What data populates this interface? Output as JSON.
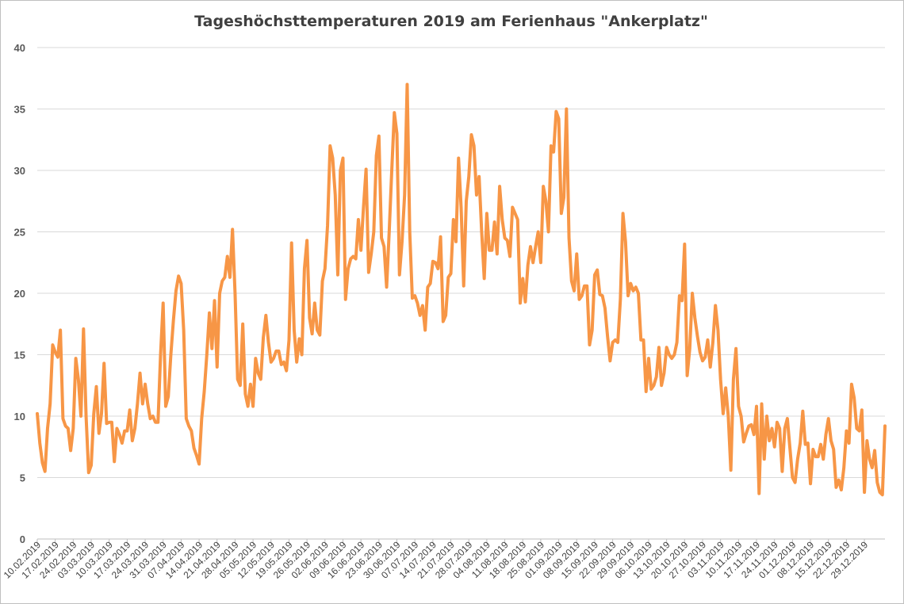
{
  "chart_data": {
    "type": "line",
    "title": "Tageshöchsttemperaturen 2019 am Ferienhaus \"Ankerplatz\"",
    "xlabel": "",
    "ylabel": "",
    "ylim": [
      0,
      40
    ],
    "y_ticks": [
      "0",
      "5",
      "10",
      "15",
      "20",
      "25",
      "30",
      "35",
      "40"
    ],
    "x_tick_labels": [
      "10.02.2019",
      "17.02.2019",
      "24.02.2019",
      "03.03.2019",
      "10.03.2019",
      "17.03.2019",
      "24.03.2019",
      "31.03.2019",
      "07.04.2019",
      "14.04.2019",
      "21.04.2019",
      "28.04.2019",
      "05.05.2019",
      "12.05.2019",
      "19.05.2019",
      "26.05.2019",
      "02.06.2019",
      "09.06.2019",
      "16.06.2019",
      "23.06.2019",
      "30.06.2019",
      "07.07.2019",
      "14.07.2019",
      "21.07.2019",
      "28.07.2019",
      "04.08.2019",
      "11.08.2019",
      "18.08.2019",
      "25.08.2019",
      "01.09.2019",
      "08.09.2019",
      "15.09.2019",
      "22.09.2019",
      "29.09.2019",
      "06.10.2019",
      "13.10.2019",
      "20.10.2019",
      "27.10.2019",
      "03.11.2019",
      "10.11.2019",
      "17.11.2019",
      "24.11.2019",
      "01.12.2019",
      "08.12.2019",
      "15.12.2019",
      "22.12.2019",
      "29.12.2019"
    ],
    "grid": true,
    "legend": "none",
    "line_color": "#f79646",
    "series": [
      {
        "start_date": "10.02.2019",
        "values": [
          10.2,
          7.8,
          6.2,
          5.5,
          9,
          11,
          15.8,
          15.2,
          14.8,
          17,
          9.8,
          9.2,
          9,
          7.2,
          9,
          14.7,
          13,
          10,
          17.1,
          10,
          5.4,
          6,
          10.2,
          12.4,
          8.6,
          10.2,
          14.3,
          9.4,
          9.5,
          9.5,
          6.3,
          9,
          8.5,
          7.8,
          8.8,
          8.8,
          10.5,
          8,
          9,
          11,
          13.5,
          11,
          12.6,
          11,
          9.8,
          10,
          9.5,
          9.5,
          15,
          19.2,
          10.8,
          11.6,
          15,
          17.8,
          20.2,
          21.4,
          20.8,
          17,
          9.8,
          9.2,
          8.8,
          7.4,
          6.8,
          6.1,
          9.8,
          12,
          15,
          18.4,
          15.5,
          19.4,
          14,
          20,
          21,
          21.3,
          23,
          21.3,
          25.2,
          20,
          13,
          12.5,
          17.5,
          11.8,
          10.8,
          12.6,
          10.8,
          14.7,
          13.5,
          13,
          16.4,
          18.2,
          16,
          14.4,
          14.7,
          15.3,
          15.3,
          14.2,
          14.4,
          13.7,
          16.2,
          24.1,
          17,
          14.4,
          16.3,
          15,
          22,
          24.3,
          18,
          16.7,
          19.2,
          17,
          16.6,
          21,
          22,
          25.5,
          32,
          31,
          28,
          21.5,
          30,
          31,
          19.5,
          22,
          22.8,
          23,
          22.8,
          26,
          23.5,
          27,
          30.1,
          21.7,
          23.2,
          25,
          31.2,
          32.8,
          24.5,
          23.8,
          20.5,
          25,
          30,
          34.7,
          33,
          21.5,
          24.2,
          28,
          37,
          25,
          19.6,
          19.8,
          19.2,
          18.2,
          19,
          17,
          20.5,
          20.8,
          22.6,
          22.5,
          22,
          24.6,
          17.7,
          18.2,
          21.3,
          21.6,
          26,
          24.2,
          31,
          27,
          20.6,
          27.5,
          29.5,
          32.9,
          32,
          28,
          29.5,
          25,
          21.2,
          26.5,
          23.5,
          23.5,
          25.8,
          23.2,
          28.7,
          26,
          24.5,
          24.3,
          23,
          27,
          26.5,
          26,
          19.2,
          21.2,
          19.3,
          22.3,
          23.8,
          22.5,
          23.8,
          25,
          22.5,
          28.7,
          27.5,
          25,
          32,
          31.5,
          34.8,
          34.2,
          26.5,
          27.8,
          35,
          24.5,
          21,
          20.2,
          23.2,
          19.5,
          19.8,
          20.6,
          20.6,
          15.8,
          17,
          21.5,
          21.9,
          19.9,
          19.8,
          18.8,
          16.5,
          14.5,
          16,
          16.2,
          16,
          19.5,
          26.5,
          24.2,
          19.8,
          20.8,
          20.2,
          20.5,
          20,
          16.2,
          16.2,
          12,
          14.7,
          12.2,
          12.5,
          13.2,
          15.6,
          12.5,
          13.5,
          15.6,
          15,
          14.7,
          15,
          16,
          19.8,
          19.4,
          24,
          13.3,
          15.5,
          20,
          18,
          16.5,
          15.2,
          14.5,
          14.8,
          16.2,
          14,
          16,
          19,
          17,
          13,
          10.2,
          12.3,
          10,
          5.6,
          13,
          15.5,
          10.8,
          10,
          7.9,
          8.6,
          9.2,
          9.3,
          8.5,
          10.8,
          3.7,
          11,
          6.5,
          10,
          8,
          9,
          7.5,
          9.5,
          9,
          5.5,
          9,
          9.8,
          7.4,
          5,
          4.6,
          6.5,
          7.8,
          10.4,
          7.7,
          7.8,
          4.5,
          7.3,
          6.7,
          6.7,
          7.7,
          6.5,
          8.5,
          9.8,
          8,
          7.3,
          4.2,
          4.8,
          4,
          5.8,
          8.8,
          7.8,
          12.6,
          11.5,
          9,
          8.8,
          10.5,
          3.8,
          8,
          6.5,
          5.8,
          7.2,
          4.6,
          3.8,
          3.6,
          9.2
        ]
      }
    ]
  }
}
